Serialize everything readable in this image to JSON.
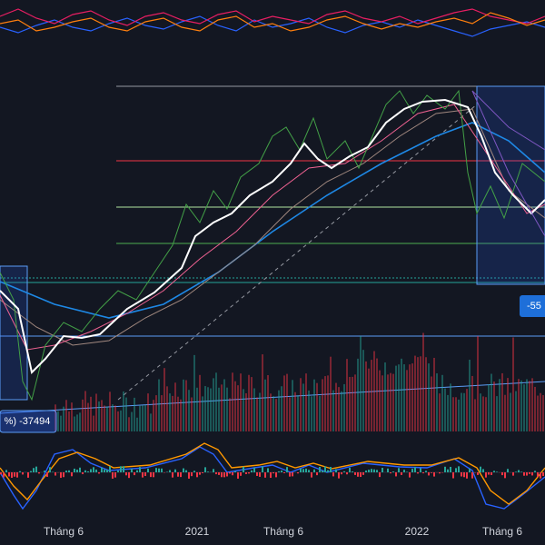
{
  "x_axis": {
    "labels": [
      "Tháng 6",
      "2021",
      "Tháng 6",
      "2022",
      "Tháng 6"
    ]
  },
  "badges": {
    "left": "%) -37494",
    "right": "-55"
  }
}
